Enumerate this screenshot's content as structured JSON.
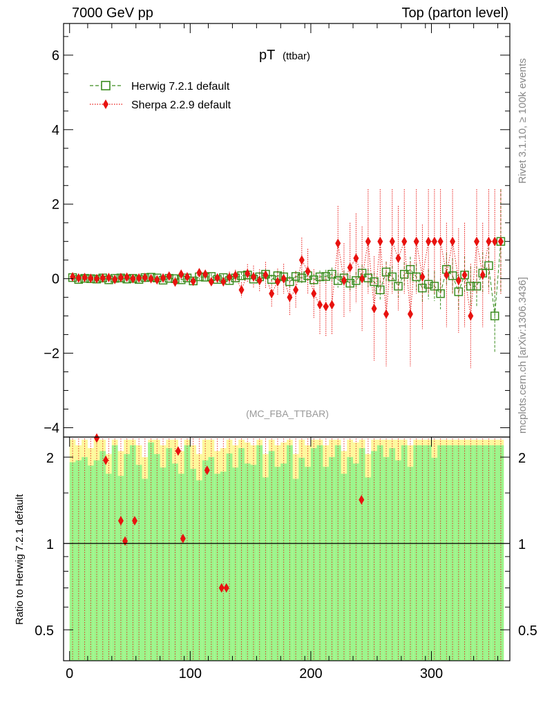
{
  "header": {
    "left": "7000 GeV pp",
    "right": "Top (parton level)"
  },
  "side_labels": {
    "rivet": "Rivet 3.1.10, ≥ 100k events",
    "mcplots": "mcplots.cern.ch [arXiv:1306.3436]"
  },
  "ratio_ylabel": "Ratio to Herwig 7.2.1 default",
  "colors": {
    "herwig": "#3a8c1e",
    "sherpa": "#e8120f",
    "band_inner": "#9cf58c",
    "band_outer": "#fdf89c"
  },
  "chart_data": {
    "type": "scatter",
    "title": "pT",
    "title_sub": "(ttbar)",
    "analysis_tag": "(MC_FBA_TTBAR)",
    "xlim": [
      -5,
      365
    ],
    "ylim": [
      -4.25,
      6.85
    ],
    "yticks": [
      -4,
      -2,
      0,
      2,
      4,
      6
    ],
    "yticklabels": [
      "−4",
      "−2",
      "0",
      "2",
      "4",
      "6"
    ],
    "xticks": [
      0,
      100,
      200,
      300
    ],
    "xticklabels": [
      "0",
      "100",
      "200",
      "300"
    ],
    "legend": [
      "Herwig 7.2.1 default",
      "Sherpa 2.2.9 default"
    ],
    "legend_position": "top-left",
    "series": [
      {
        "name": "Herwig 7.2.1 default",
        "x": [
          2.5,
          7.5,
          12.5,
          17.5,
          22.5,
          27.5,
          32.5,
          37.5,
          42.5,
          47.5,
          52.5,
          57.5,
          62.5,
          67.5,
          72.5,
          77.5,
          82.5,
          87.5,
          92.5,
          97.5,
          102.5,
          107.5,
          112.5,
          117.5,
          122.5,
          127.5,
          132.5,
          137.5,
          142.5,
          147.5,
          152.5,
          157.5,
          162.5,
          167.5,
          172.5,
          177.5,
          182.5,
          187.5,
          192.5,
          197.5,
          202.5,
          207.5,
          212.5,
          217.5,
          222.5,
          227.5,
          232.5,
          237.5,
          242.5,
          247.5,
          252.5,
          257.5,
          262.5,
          267.5,
          272.5,
          277.5,
          282.5,
          287.5,
          292.5,
          297.5,
          302.5,
          307.5,
          312.5,
          317.5,
          322.5,
          327.5,
          332.5,
          337.5,
          342.5,
          347.5,
          352.5,
          357.5
        ],
        "values": [
          0.03,
          -0.02,
          0.01,
          0.0,
          -0.01,
          0.02,
          -0.03,
          0.01,
          0.02,
          -0.01,
          0.01,
          -0.02,
          0.03,
          0.04,
          0.02,
          -0.04,
          0.01,
          0.0,
          -0.03,
          0.02,
          -0.06,
          0.05,
          0.04,
          0.06,
          -0.02,
          0.03,
          -0.05,
          0.02,
          0.08,
          0.1,
          -0.01,
          0.05,
          0.12,
          -0.02,
          0.08,
          0.05,
          -0.08,
          0.06,
          0.02,
          0.08,
          -0.03,
          0.05,
          0.06,
          0.12,
          -0.05,
          0.02,
          -0.12,
          -0.05,
          0.15,
          0.02,
          -0.08,
          -0.3,
          0.18,
          0.05,
          -0.2,
          0.12,
          0.25,
          0.05,
          -0.25,
          -0.15,
          -0.2,
          -0.4,
          0.25,
          0.08,
          -0.35,
          0.1,
          -0.2,
          -0.2,
          0.15,
          0.35,
          -1.0,
          1.0
        ],
        "errors": [
          0.04,
          0.04,
          0.04,
          0.04,
          0.04,
          0.04,
          0.04,
          0.04,
          0.05,
          0.05,
          0.05,
          0.05,
          0.05,
          0.05,
          0.06,
          0.06,
          0.06,
          0.06,
          0.07,
          0.07,
          0.07,
          0.08,
          0.08,
          0.08,
          0.09,
          0.09,
          0.1,
          0.1,
          0.1,
          0.11,
          0.12,
          0.12,
          0.13,
          0.13,
          0.14,
          0.14,
          0.15,
          0.15,
          0.16,
          0.16,
          0.17,
          0.17,
          0.18,
          0.18,
          0.19,
          0.2,
          0.2,
          0.22,
          0.22,
          0.24,
          0.25,
          0.26,
          0.28,
          0.3,
          0.3,
          0.32,
          0.34,
          0.36,
          0.38,
          0.4,
          0.4,
          0.42,
          0.44,
          0.46,
          0.48,
          0.5,
          0.52,
          0.54,
          0.56,
          0.6,
          1.0,
          1.4
        ]
      },
      {
        "name": "Sherpa 2.2.9 default",
        "x": [
          2.5,
          7.5,
          12.5,
          17.5,
          22.5,
          27.5,
          32.5,
          37.5,
          42.5,
          47.5,
          52.5,
          57.5,
          62.5,
          67.5,
          72.5,
          77.5,
          82.5,
          87.5,
          92.5,
          97.5,
          102.5,
          107.5,
          112.5,
          117.5,
          122.5,
          127.5,
          132.5,
          137.5,
          142.5,
          147.5,
          152.5,
          157.5,
          162.5,
          167.5,
          172.5,
          177.5,
          182.5,
          187.5,
          192.5,
          197.5,
          202.5,
          207.5,
          212.5,
          217.5,
          222.5,
          227.5,
          232.5,
          237.5,
          242.5,
          247.5,
          252.5,
          257.5,
          262.5,
          267.5,
          272.5,
          277.5,
          282.5,
          287.5,
          292.5,
          297.5,
          302.5,
          307.5,
          312.5,
          317.5,
          322.5,
          327.5,
          332.5,
          337.5,
          342.5,
          347.5,
          352.5,
          357.5
        ],
        "values": [
          0.05,
          0.02,
          0.03,
          0.01,
          0.0,
          0.02,
          0.03,
          -0.02,
          0.03,
          0.04,
          0.0,
          0.02,
          0.03,
          0.0,
          -0.03,
          0.02,
          0.07,
          -0.09,
          0.12,
          0.05,
          -0.07,
          0.16,
          0.12,
          -0.08,
          0.02,
          -0.08,
          0.04,
          0.09,
          -0.3,
          0.14,
          0.05,
          -0.05,
          0.1,
          -0.4,
          -0.08,
          0.0,
          -0.5,
          -0.3,
          0.5,
          0.2,
          -0.4,
          -0.7,
          -0.75,
          -0.7,
          0.95,
          -0.05,
          0.3,
          0.55,
          0.0,
          1.0,
          -0.8,
          1.0,
          -0.95,
          1.0,
          0.55,
          1.0,
          -0.95,
          1.0,
          0.05,
          1.0,
          1.0,
          1.0,
          0.1,
          1.0,
          -0.05,
          0.1,
          -1.0,
          1.0,
          0.1,
          1.0,
          1.0,
          1.0
        ],
        "errors": [
          0.03,
          0.03,
          0.03,
          0.03,
          0.03,
          0.03,
          0.03,
          0.03,
          0.04,
          0.04,
          0.04,
          0.04,
          0.04,
          0.05,
          0.05,
          0.05,
          0.06,
          0.06,
          0.06,
          0.07,
          0.08,
          0.08,
          0.1,
          0.1,
          0.12,
          0.12,
          0.15,
          0.15,
          0.2,
          0.25,
          0.3,
          0.3,
          0.35,
          0.35,
          0.35,
          0.4,
          0.5,
          0.5,
          0.6,
          0.6,
          0.65,
          0.8,
          0.8,
          0.8,
          1.0,
          1.0,
          1.2,
          1.2,
          1.4,
          1.4,
          1.4,
          1.4,
          1.4,
          1.4,
          1.4,
          1.4,
          1.4,
          1.4,
          1.4,
          1.4,
          1.4,
          1.4,
          1.4,
          1.4,
          1.4,
          1.4,
          1.4,
          1.4,
          1.4,
          1.4,
          1.4,
          1.4
        ]
      }
    ],
    "ratio_panel": {
      "ylabel": "Ratio to Herwig 7.2.1 default",
      "scale": "log",
      "ylim": [
        0.39,
        2.35
      ],
      "yticks": [
        0.5,
        1,
        2
      ],
      "yticklabels": [
        "0.5",
        "1",
        "2"
      ],
      "band_inner_ratio": [
        1.92,
        1.95,
        2.0,
        1.87,
        1.95,
        2.1,
        1.75,
        2.2,
        1.72,
        2.05,
        2.2,
        1.88,
        1.68,
        2.25,
        2.05,
        1.84,
        2.15,
        1.9,
        1.75,
        2.2,
        1.82,
        1.66,
        1.95,
        2.0,
        1.75,
        1.78,
        2.06,
        1.84,
        2.15,
        1.9,
        1.88,
        2.2,
        1.7,
        2.1,
        1.85,
        1.9,
        2.2,
        1.68,
        1.99,
        1.85,
        2.15,
        2.2,
        1.85,
        2.0,
        2.2,
        1.75,
        2.0,
        1.9,
        2.15,
        1.7,
        2.1,
        2.2,
        2.0,
        2.15,
        1.95,
        2.2,
        1.85,
        2.2,
        2.2,
        2.2,
        1.99,
        2.2,
        2.2,
        2.2,
        2.2,
        2.2,
        2.2,
        2.2,
        2.2,
        2.2,
        2.2,
        2.2
      ],
      "band_outer_ratio": [
        2.3,
        2.2,
        2.3,
        2.15,
        2.3,
        2.3,
        2.05,
        2.3,
        2.1,
        2.3,
        2.3,
        2.2,
        2.0,
        2.3,
        2.3,
        2.2,
        2.3,
        2.3,
        2.1,
        2.3,
        2.2,
        2.05,
        2.3,
        2.3,
        2.1,
        2.15,
        2.3,
        2.2,
        2.3,
        2.25,
        2.2,
        2.3,
        2.05,
        2.3,
        2.2,
        2.25,
        2.3,
        2.05,
        2.3,
        2.2,
        2.3,
        2.3,
        2.2,
        2.3,
        2.3,
        2.1,
        2.3,
        2.25,
        2.3,
        2.05,
        2.3,
        2.3,
        2.3,
        2.3,
        2.3,
        2.3,
        2.2,
        2.3,
        2.3,
        2.3,
        2.3,
        2.3,
        2.3,
        2.3,
        2.3,
        2.3,
        2.3,
        2.3,
        2.3,
        2.3,
        2.3,
        2.3
      ],
      "sherpa_points": [
        {
          "x": 22.5,
          "y": 2.33
        },
        {
          "x": 30.0,
          "y": 1.95
        },
        {
          "x": 42.5,
          "y": 1.2
        },
        {
          "x": 46.0,
          "y": 1.02
        },
        {
          "x": 54.0,
          "y": 1.2
        },
        {
          "x": 90.0,
          "y": 2.1
        },
        {
          "x": 94.0,
          "y": 1.04
        },
        {
          "x": 114.0,
          "y": 1.8
        },
        {
          "x": 126.0,
          "y": 0.7
        },
        {
          "x": 130.0,
          "y": 0.7
        },
        {
          "x": 242.0,
          "y": 1.42
        }
      ]
    }
  }
}
